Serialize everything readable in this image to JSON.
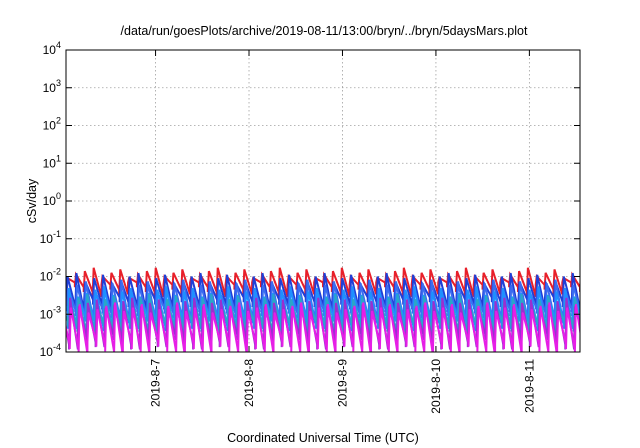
{
  "chart_data": {
    "type": "line",
    "title": "/data/run/goesPlots/archive/2019-08-11/13:00/bryn/../bryn/5daysMars.plot",
    "xlabel": "Coordinated Universal Time (UTC)",
    "ylabel": "cSv/day",
    "yscale": "log",
    "ylim": [
      0.0001,
      10000
    ],
    "xlim": [
      "2019-08-06T01:00",
      "2019-08-11T13:00"
    ],
    "x_ticks": [
      {
        "label": "2019-8-7",
        "value": "2019-08-07T00:00"
      },
      {
        "label": "2019-8-8",
        "value": "2019-08-08T00:00"
      },
      {
        "label": "2019-8-9",
        "value": "2019-08-09T00:00"
      },
      {
        "label": "2019-8-10",
        "value": "2019-08-10T00:00"
      },
      {
        "label": "2019-8-11",
        "value": "2019-08-11T00:00"
      }
    ],
    "y_ticks": [
      {
        "base": "10",
        "exp": "4",
        "value": 10000
      },
      {
        "base": "10",
        "exp": "3",
        "value": 1000
      },
      {
        "base": "10",
        "exp": "2",
        "value": 100
      },
      {
        "base": "10",
        "exp": "1",
        "value": 10
      },
      {
        "base": "10",
        "exp": "0",
        "value": 1
      },
      {
        "base": "10",
        "exp": "-1",
        "value": 0.1
      },
      {
        "base": "10",
        "exp": "-2",
        "value": 0.01
      },
      {
        "base": "10",
        "exp": "-3",
        "value": 0.001
      },
      {
        "base": "10",
        "exp": "-4",
        "value": 0.0001
      }
    ],
    "grid": true,
    "sawtooth_cycles": 58,
    "series": [
      {
        "color": "#e8202a",
        "peak": 0.0125,
        "trough": 0.0045,
        "phase": 0.0
      },
      {
        "color": "#1f3fd8",
        "peak": 0.009,
        "trough": 0.0018,
        "phase": 0.05
      },
      {
        "color": "#3b6cf0",
        "peak": 0.006,
        "trough": 0.0009,
        "phase": 0.12
      },
      {
        "color": "#1e90ff",
        "peak": 0.004,
        "trough": 0.00055,
        "phase": 0.2
      },
      {
        "color": "#2aa6c8",
        "peak": 0.0025,
        "trough": 0.0004,
        "phase": 0.28
      },
      {
        "color": "#9a2fd0",
        "peak": 0.002,
        "trough": 0.00018,
        "phase": 0.34
      },
      {
        "color": "#e61ee6",
        "peak": 0.0015,
        "trough": 0.00012,
        "phase": 0.42
      }
    ]
  }
}
